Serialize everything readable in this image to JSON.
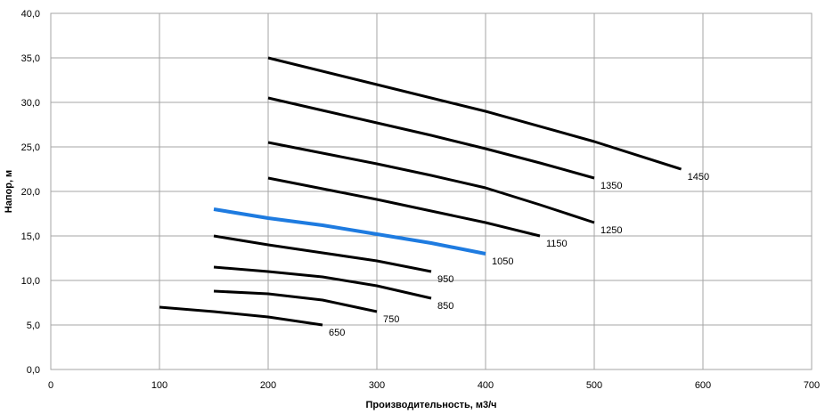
{
  "chart_data": {
    "type": "line",
    "xlabel": "Производительность,  м3/ч",
    "ylabel": "Напор, м",
    "xlim": [
      0,
      700
    ],
    "ylim": [
      0,
      40
    ],
    "x_ticks": [
      0,
      100,
      200,
      300,
      400,
      500,
      600,
      700
    ],
    "y_ticks": [
      "0,0",
      "5,0",
      "10,0",
      "15,0",
      "20,0",
      "25,0",
      "30,0",
      "35,0",
      "40,0"
    ],
    "x_tick_labels": [
      "0",
      "100",
      "200",
      "300",
      "400",
      "500",
      "600",
      "700"
    ],
    "grid": true,
    "legend": "none (inline labels at line ends)",
    "series": [
      {
        "name": "650",
        "color": "#000000",
        "x": [
          100,
          150,
          200,
          250
        ],
        "y": [
          7.0,
          6.5,
          5.9,
          5.0
        ]
      },
      {
        "name": "750",
        "color": "#000000",
        "x": [
          150,
          200,
          250,
          300
        ],
        "y": [
          8.8,
          8.5,
          7.8,
          6.5
        ]
      },
      {
        "name": "850",
        "color": "#000000",
        "x": [
          150,
          200,
          250,
          300,
          350
        ],
        "y": [
          11.5,
          11.0,
          10.4,
          9.4,
          8.0
        ]
      },
      {
        "name": "950",
        "color": "#000000",
        "x": [
          150,
          200,
          250,
          300,
          350
        ],
        "y": [
          15.0,
          14.0,
          13.1,
          12.2,
          11.0
        ]
      },
      {
        "name": "1050",
        "color": "#1e7be0",
        "x": [
          150,
          200,
          250,
          300,
          350,
          400
        ],
        "y": [
          18.0,
          17.0,
          16.2,
          15.2,
          14.2,
          13.0
        ]
      },
      {
        "name": "1150",
        "color": "#000000",
        "x": [
          200,
          250,
          300,
          350,
          400,
          450
        ],
        "y": [
          21.5,
          20.3,
          19.1,
          17.8,
          16.5,
          15.0
        ]
      },
      {
        "name": "1250",
        "color": "#000000",
        "x": [
          200,
          250,
          300,
          350,
          400,
          450,
          500
        ],
        "y": [
          25.5,
          24.3,
          23.1,
          21.8,
          20.4,
          18.5,
          16.5
        ]
      },
      {
        "name": "1350",
        "color": "#000000",
        "x": [
          200,
          250,
          300,
          350,
          400,
          450,
          500
        ],
        "y": [
          30.5,
          29.1,
          27.7,
          26.3,
          24.8,
          23.2,
          21.5
        ]
      },
      {
        "name": "1450",
        "color": "#000000",
        "x": [
          200,
          300,
          400,
          500,
          580
        ],
        "y": [
          35.0,
          32.0,
          29.0,
          25.6,
          22.5
        ]
      }
    ]
  }
}
